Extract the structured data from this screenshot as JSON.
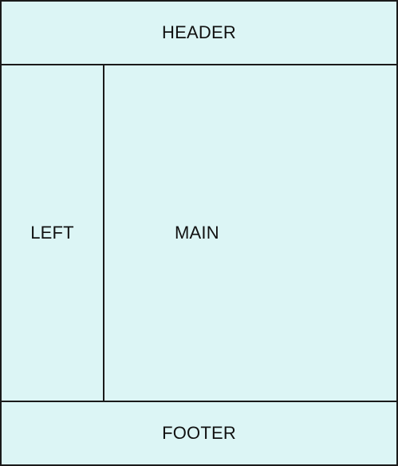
{
  "colors": {
    "fill": "#dcf5f5",
    "border": "#1a1a1a",
    "text": "#111111"
  },
  "header": {
    "label": "HEADER"
  },
  "left": {
    "label": "LEFT"
  },
  "main": {
    "label": "MAIN"
  },
  "footer": {
    "label": "FOOTER"
  }
}
